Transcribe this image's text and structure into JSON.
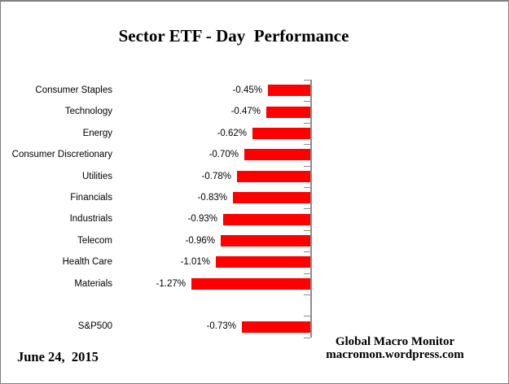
{
  "title": "Sector ETF - Day  Performance",
  "footer": {
    "date": "June 24,  2015",
    "source_name": "Global Macro Monitor",
    "source_url": "macromon.wordpress.com"
  },
  "chart_data": {
    "type": "bar",
    "orientation": "horizontal",
    "title": "Sector ETF - Day  Performance",
    "unit": "%",
    "categories": [
      "Consumer Staples",
      "Technology",
      "Energy",
      "Consumer Discretionary",
      "Utilities",
      "Financials",
      "Industrials",
      "Telecom",
      "Health Care",
      "Materials",
      "",
      "S&P500"
    ],
    "values": [
      -0.45,
      -0.47,
      -0.62,
      -0.7,
      -0.78,
      -0.83,
      -0.93,
      -0.96,
      -1.01,
      -1.27,
      null,
      -0.73
    ],
    "value_labels": [
      "-0.45%",
      "-0.47%",
      "-0.62%",
      "-0.70%",
      "-0.78%",
      "-0.83%",
      "-0.93%",
      "-0.96%",
      "-1.01%",
      "-1.27%",
      "",
      "-0.73%"
    ],
    "xlim": [
      -1.4,
      0
    ],
    "zero_axis_position": "right",
    "grid": false,
    "legend": false,
    "bar_color": "#FF0000",
    "axis_color": "#8C8C8C",
    "text_color": "#000000"
  }
}
